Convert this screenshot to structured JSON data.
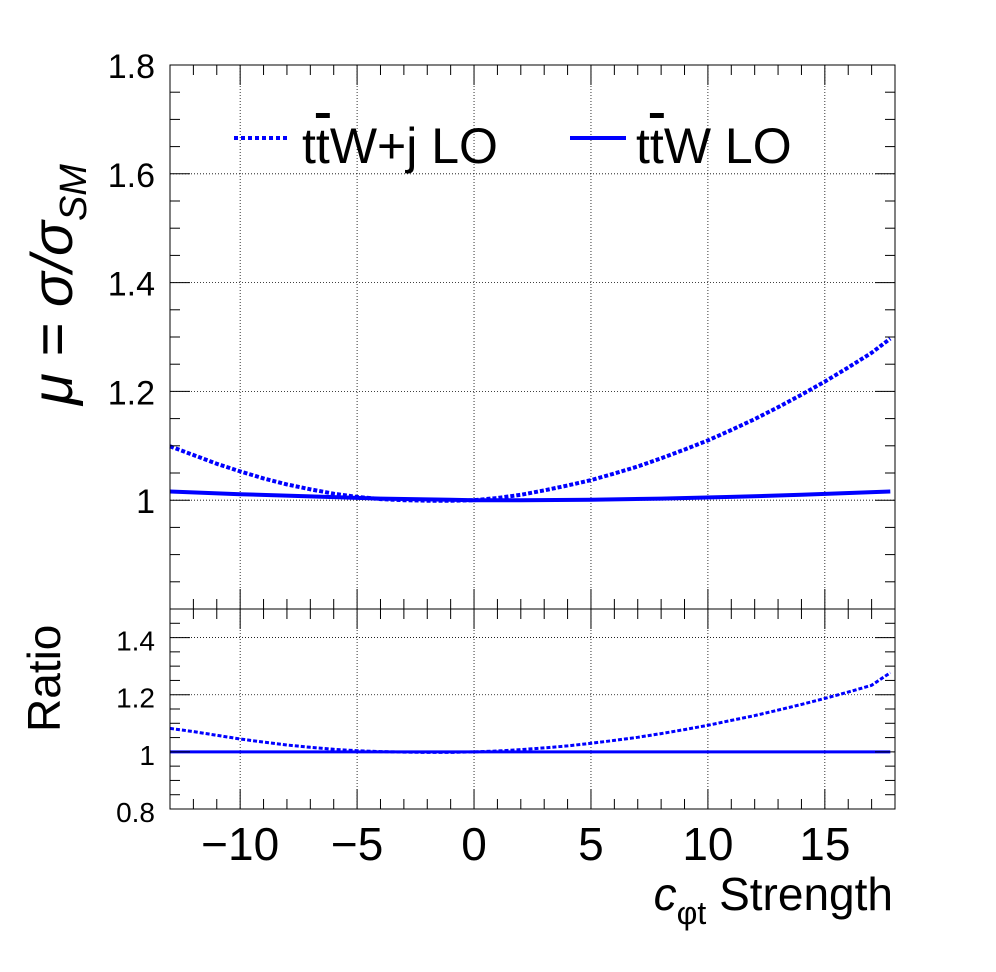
{
  "chart_data": [
    {
      "type": "line",
      "panel": "main",
      "ylabel_prefix": "μ = σ/σ",
      "ylabel_sub": "SM",
      "xlim": [
        -13,
        18
      ],
      "ylim": [
        0.8,
        1.8
      ],
      "yticks": [
        1,
        1.2,
        1.4,
        1.6,
        1.8
      ],
      "ytick_labels": [
        "1",
        "1.2",
        "1.4",
        "1.6",
        "1.8"
      ],
      "grid": true,
      "legend_position": "top",
      "legend": [
        {
          "prefix": "t",
          "overbar": "t",
          "suffix": "W+j LO",
          "style": "dotted"
        },
        {
          "prefix": "t",
          "overbar": "t",
          "suffix": "W LO",
          "style": "solid"
        }
      ],
      "series": [
        {
          "style": "dotted",
          "x": [
            -13,
            -12,
            -11,
            -10,
            -9,
            -8,
            -7,
            -6,
            -5,
            -4,
            -3,
            -2,
            -1,
            0,
            1,
            2,
            3,
            4,
            5,
            6,
            7,
            8,
            9,
            10,
            11,
            12,
            13,
            14,
            15,
            16,
            17,
            17.8
          ],
          "y": [
            1.099,
            1.083,
            1.067,
            1.053,
            1.04,
            1.029,
            1.02,
            1.012,
            1.006,
            1.002,
            1.0,
            0.999,
            0.999,
            1.0,
            1.004,
            1.01,
            1.018,
            1.027,
            1.037,
            1.049,
            1.062,
            1.077,
            1.093,
            1.11,
            1.129,
            1.149,
            1.171,
            1.194,
            1.218,
            1.244,
            1.271,
            1.297
          ]
        },
        {
          "style": "solid",
          "x": [
            -13,
            -10,
            -7,
            -4,
            -1,
            0,
            2,
            5,
            8,
            11,
            14,
            17.8
          ],
          "y": [
            1.016,
            1.011,
            1.007,
            1.003,
            1.001,
            1.0,
            1.0,
            1.001,
            1.003,
            1.006,
            1.01,
            1.016
          ]
        }
      ]
    },
    {
      "type": "line",
      "panel": "ratio",
      "ylabel": "Ratio",
      "xlabel_main": "c",
      "xlabel_sub": "φt",
      "xlabel_rest": " Strength",
      "xlim": [
        -13,
        18
      ],
      "ylim": [
        0.8,
        1.5
      ],
      "yticks": [
        0.8,
        1,
        1.2,
        1.4
      ],
      "ytick_labels": [
        "0.8",
        "1",
        "1.2",
        "1.4"
      ],
      "xticks": [
        -10,
        -5,
        0,
        5,
        10,
        15
      ],
      "xtick_labels": [
        "−10",
        "−5",
        "0",
        "5",
        "10",
        "15"
      ],
      "grid": true,
      "series": [
        {
          "style": "dotted",
          "x": [
            -13,
            -12,
            -11,
            -10,
            -9,
            -8,
            -7,
            -6,
            -5,
            -4,
            -3,
            -2,
            -1,
            0,
            1,
            2,
            3,
            4,
            5,
            6,
            7,
            8,
            9,
            10,
            11,
            12,
            13,
            14,
            15,
            16,
            17,
            17.8
          ],
          "y": [
            1.082,
            1.071,
            1.058,
            1.045,
            1.034,
            1.024,
            1.016,
            1.009,
            1.004,
            1.001,
            0.999,
            0.998,
            0.998,
            1.0,
            1.003,
            1.008,
            1.014,
            1.021,
            1.03,
            1.04,
            1.051,
            1.064,
            1.078,
            1.093,
            1.11,
            1.127,
            1.146,
            1.166,
            1.187,
            1.209,
            1.233,
            1.277
          ]
        },
        {
          "style": "solid",
          "x": [
            -13,
            17.8
          ],
          "y": [
            1.0,
            1.0
          ]
        }
      ]
    }
  ],
  "colors": {
    "series": "#0000ff",
    "axis": "#000000",
    "grid": "#000000",
    "background": "#ffffff"
  }
}
